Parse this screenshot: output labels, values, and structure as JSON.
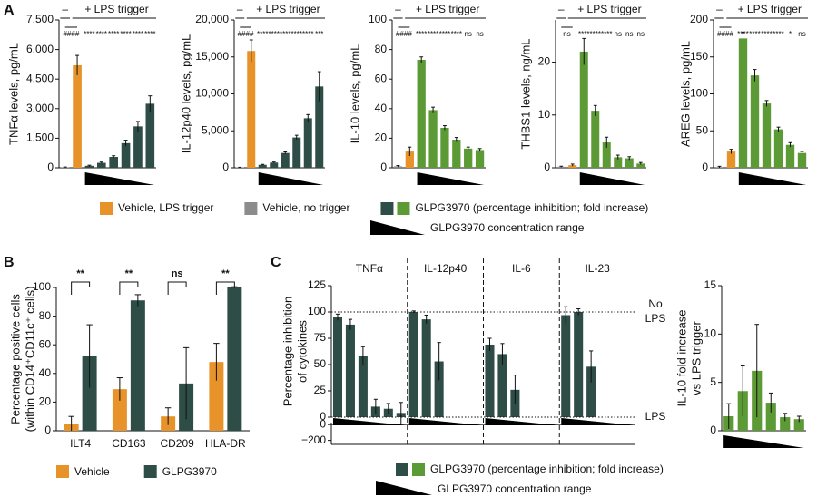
{
  "panel_labels": [
    "A",
    "B",
    "C"
  ],
  "legend_a": {
    "items": [
      {
        "label": "Vehicle, LPS trigger",
        "colors": [
          "#e8922a"
        ]
      },
      {
        "label": "Vehicle, no trigger",
        "colors": [
          "#8c8c8c"
        ]
      },
      {
        "label": "GLPG3970 (percentage inhibition; fold increase)",
        "colors": [
          "#2e4d47",
          "#5c9a35"
        ]
      }
    ],
    "range_label": "GLPG3970 concentration range"
  },
  "legend_c": {
    "items": [
      {
        "label": "GLPG3970 (percentage inhibition; fold increase)",
        "colors": [
          "#2e4d47",
          "#5c9a35"
        ]
      }
    ],
    "range_label": "GLPG3970 concentration range"
  },
  "chart_data": [
    {
      "type": "bar",
      "ylabel": "TNFα levels, pg/mL",
      "header_minus": "–",
      "header_plus": "+ LPS trigger",
      "categories": [
        null,
        null,
        null,
        null,
        null,
        null,
        null,
        null
      ],
      "values": [
        30,
        5200,
        100,
        250,
        550,
        1250,
        2100,
        3250
      ],
      "errors": [
        10,
        500,
        30,
        40,
        60,
        150,
        250,
        400
      ],
      "colors": [
        "#8c8c8c",
        "#e8922a",
        "#2e4d47",
        "#2e4d47",
        "#2e4d47",
        "#2e4d47",
        "#2e4d47",
        "#2e4d47"
      ],
      "significance": [
        "####",
        "****",
        "****",
        "****",
        "****",
        "****",
        "****"
      ],
      "ylim": [
        0,
        7500
      ],
      "yticks": [
        0,
        {
          "value": 1500,
          "label": "1,500"
        },
        {
          "value": 3000,
          "label": "3,000"
        },
        {
          "value": 4500,
          "label": "4,500"
        },
        {
          "value": 6000,
          "label": "6,000"
        },
        {
          "value": 7500,
          "label": "7,500"
        }
      ]
    },
    {
      "type": "bar",
      "ylabel": "IL-12p40 levels, pg/mL",
      "header_minus": "–",
      "header_plus": "+ LPS trigger",
      "categories": [
        null,
        null,
        null,
        null,
        null,
        null,
        null,
        null
      ],
      "values": [
        50,
        15800,
        400,
        700,
        2000,
        4100,
        6700,
        11000
      ],
      "errors": [
        20,
        1500,
        60,
        80,
        150,
        300,
        500,
        2000
      ],
      "colors": [
        "#8c8c8c",
        "#e8922a",
        "#2e4d47",
        "#2e4d47",
        "#2e4d47",
        "#2e4d47",
        "#2e4d47",
        "#2e4d47"
      ],
      "significance": [
        "####",
        "****",
        "****",
        "****",
        "****",
        "****",
        "***"
      ],
      "ylim": [
        0,
        20000
      ],
      "yticks": [
        0,
        {
          "value": 5000,
          "label": "5,000"
        },
        {
          "value": 10000,
          "label": "10,000"
        },
        {
          "value": 15000,
          "label": "15,000"
        },
        {
          "value": 20000,
          "label": "20,000"
        }
      ]
    },
    {
      "type": "bar",
      "ylabel": "IL-10 levels, pg/mL",
      "header_minus": "–",
      "header_plus": "+ LPS trigger",
      "categories": [
        null,
        null,
        null,
        null,
        null,
        null,
        null,
        null
      ],
      "values": [
        1,
        11,
        73,
        39,
        27,
        19,
        13,
        12
      ],
      "errors": [
        0.5,
        3,
        2,
        2,
        1.5,
        1.5,
        1,
        1
      ],
      "colors": [
        "#8c8c8c",
        "#e8922a",
        "#5c9a35",
        "#5c9a35",
        "#5c9a35",
        "#5c9a35",
        "#5c9a35",
        "#5c9a35"
      ],
      "significance": [
        "####",
        "****",
        "****",
        "****",
        "****",
        "ns",
        "ns"
      ],
      "ylim": [
        0,
        100
      ],
      "yticks": [
        0,
        20,
        40,
        60,
        80,
        100
      ]
    },
    {
      "type": "bar",
      "ylabel": "THBS1 levels, ng/mL",
      "header_minus": "–",
      "header_plus": "+ LPS trigger",
      "categories": [
        null,
        null,
        null,
        null,
        null,
        null,
        null,
        null
      ],
      "values": [
        0.2,
        0.5,
        22,
        10.8,
        4.8,
        2.0,
        1.8,
        0.8
      ],
      "errors": [
        0.1,
        0.2,
        2.5,
        1,
        1,
        0.4,
        0.3,
        0.2
      ],
      "colors": [
        "#8c8c8c",
        "#e8922a",
        "#5c9a35",
        "#5c9a35",
        "#5c9a35",
        "#5c9a35",
        "#5c9a35",
        "#5c9a35"
      ],
      "significance": [
        "ns",
        "****",
        "****",
        "****",
        "ns",
        "ns",
        "ns"
      ],
      "ylim": [
        0,
        28
      ],
      "yticks": [
        0,
        10,
        20
      ]
    },
    {
      "type": "bar",
      "ylabel": "AREG levels, pg/mL",
      "header_minus": "–",
      "header_plus": "+ LPS trigger",
      "categories": [
        null,
        null,
        null,
        null,
        null,
        null,
        null,
        null
      ],
      "values": [
        1,
        22,
        175,
        125,
        87,
        52,
        31,
        20
      ],
      "errors": [
        1,
        3,
        8,
        8,
        4,
        3,
        3,
        2
      ],
      "colors": [
        "#8c8c8c",
        "#e8922a",
        "#5c9a35",
        "#5c9a35",
        "#5c9a35",
        "#5c9a35",
        "#5c9a35",
        "#5c9a35"
      ],
      "significance": [
        "####",
        "****",
        "****",
        "****",
        "****",
        "*",
        "ns"
      ],
      "ylim": [
        0,
        200
      ],
      "yticks": [
        0,
        50,
        100,
        150,
        200
      ]
    },
    {
      "type": "grouped_bar",
      "ylabel": [
        "Percentage positive cells",
        "(within CD14⁺CD11c⁺ cells)"
      ],
      "categories": [
        "ILT4",
        "CD163",
        "CD209",
        "HLA-DR"
      ],
      "series": [
        {
          "name": "Vehicle",
          "color": "#e8922a",
          "values": [
            5,
            29,
            10,
            48
          ],
          "errors": [
            5,
            8,
            6,
            13
          ]
        },
        {
          "name": "GLPG3970",
          "color": "#2e4d47",
          "values": [
            52,
            91,
            33,
            100
          ],
          "errors": [
            22,
            4,
            25,
            0.5
          ]
        }
      ],
      "significance": [
        "**",
        "**",
        "ns",
        "**"
      ],
      "ylim": [
        0,
        100
      ],
      "yticks": [
        0,
        20,
        40,
        60,
        80,
        100
      ],
      "legend": "bottom"
    },
    {
      "type": "grouped_inhibition",
      "ylabel": [
        "Percentage inhibition",
        "of cytokines"
      ],
      "color": "#2e4d47",
      "groups": [
        {
          "name": "TNFα",
          "values": [
            95,
            88,
            58,
            10,
            8,
            4
          ],
          "errors": [
            3,
            5,
            9,
            7,
            5,
            10
          ]
        },
        {
          "name": "IL-12p40",
          "values": [
            100,
            93,
            53,
            null,
            null,
            null
          ],
          "errors": [
            1,
            4,
            18,
            null,
            null,
            null
          ]
        },
        {
          "name": "IL-6",
          "values": [
            69,
            60,
            26,
            null,
            null,
            null
          ],
          "errors": [
            6,
            10,
            14,
            null,
            null,
            null
          ]
        },
        {
          "name": "IL-23",
          "values": [
            97,
            100,
            48,
            null,
            null,
            null
          ],
          "errors": [
            8,
            3,
            15,
            null,
            null,
            null
          ]
        }
      ],
      "reference_lines": [
        {
          "value": 100,
          "label": [
            "No",
            "LPS"
          ]
        },
        {
          "value": 0,
          "label": [
            "LPS"
          ]
        }
      ],
      "ylim": [
        0,
        125
      ],
      "yticks": [
        0,
        25,
        50,
        75,
        100,
        125
      ],
      "lower_ylim": [
        -250,
        25
      ],
      "lower_yticks": [
        0,
        {
          "value": -200,
          "label": "−200"
        }
      ]
    },
    {
      "type": "bar",
      "ylabel": [
        "IL-10 fold increase",
        "vs LPS trigger"
      ],
      "color": "#5c9a35",
      "categories": [
        null,
        null,
        null,
        null,
        null,
        null
      ],
      "values": [
        1.5,
        4.1,
        6.2,
        2.9,
        1.4,
        1.2
      ],
      "errors": [
        1.3,
        2.6,
        4.8,
        1,
        0.4,
        0.3
      ],
      "ylim": [
        0,
        15
      ],
      "yticks": [
        0,
        5,
        10,
        15
      ]
    }
  ]
}
